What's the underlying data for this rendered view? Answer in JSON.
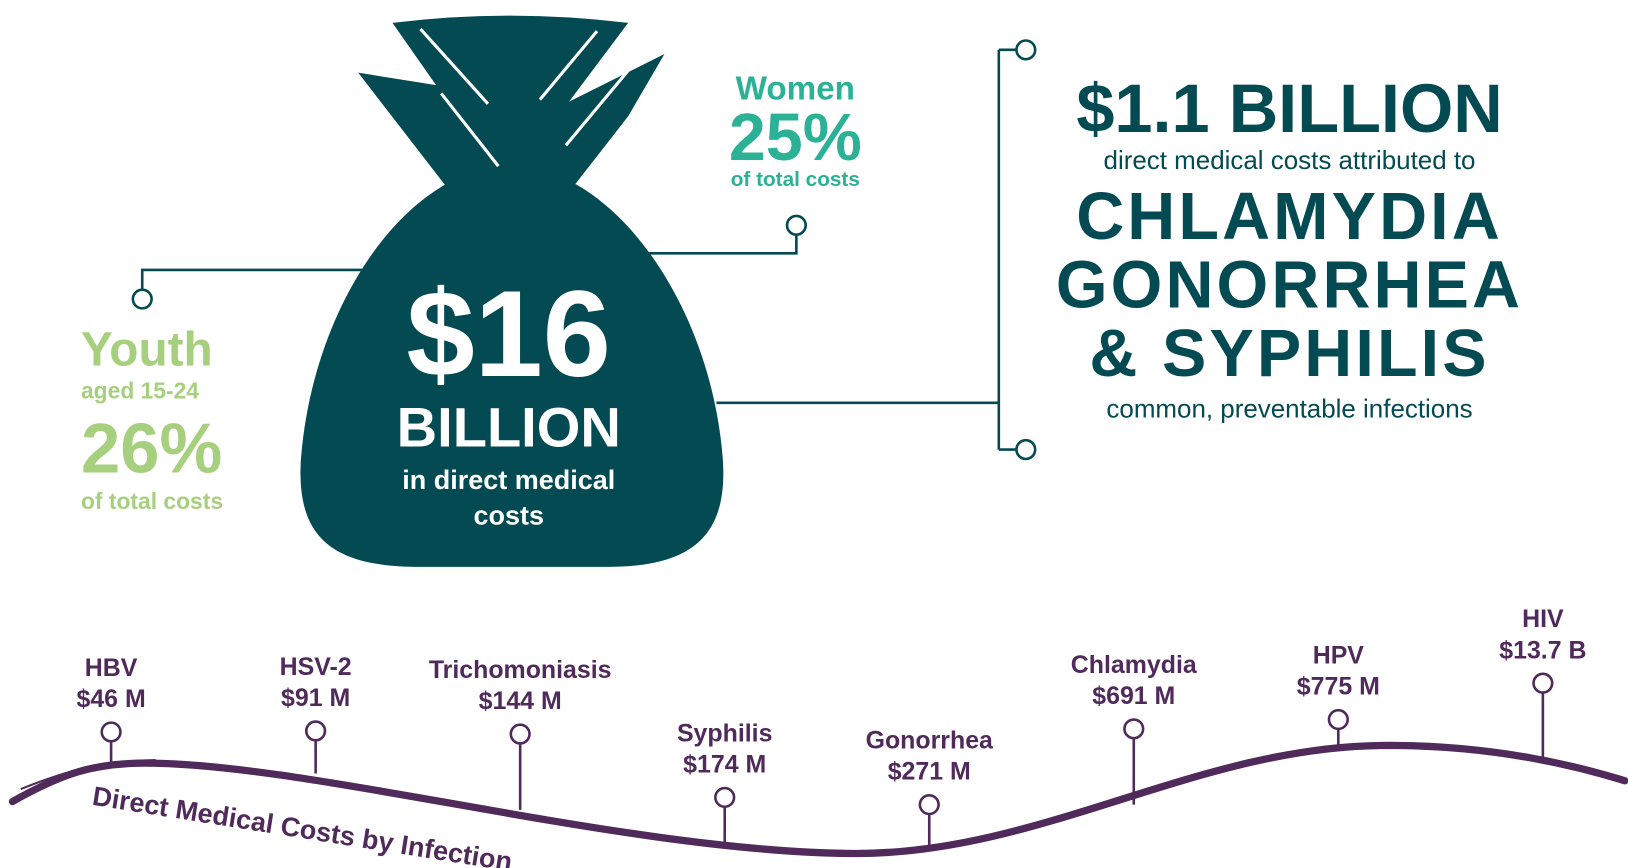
{
  "bag": {
    "amount": "$16",
    "unit": "BILLION",
    "caption_lines": [
      "in direct medical",
      "costs"
    ]
  },
  "women": {
    "label": "Women",
    "percent": "25%",
    "caption": "of total costs"
  },
  "youth": {
    "label": "Youth",
    "age": "aged 15-24",
    "percent": "26%",
    "caption": "of total costs"
  },
  "highlight": {
    "amount": "$1.1 BILLION",
    "intro": "direct medical costs attributed to",
    "diseases": [
      "CHLAMYDIA",
      "GONORRHEA",
      "& SYPHILIS"
    ],
    "note": "common, preventable infections"
  },
  "timeline": {
    "title": "Direct Medical Costs by Infection . . .",
    "items": [
      {
        "name": "HBV",
        "cost": "$46 M"
      },
      {
        "name": "HSV-2",
        "cost": "$91 M"
      },
      {
        "name": "Trichomoniasis",
        "cost": "$144 M"
      },
      {
        "name": "Syphilis",
        "cost": "$174 M"
      },
      {
        "name": "Gonorrhea",
        "cost": "$271 M"
      },
      {
        "name": "Chlamydia",
        "cost": "$691 M"
      },
      {
        "name": "HPV",
        "cost": "$775 M"
      },
      {
        "name": "HIV",
        "cost": "$13.7 B"
      }
    ]
  }
}
